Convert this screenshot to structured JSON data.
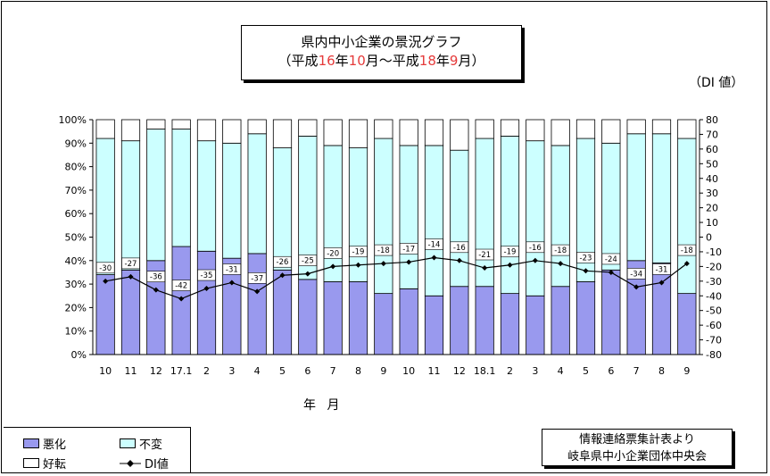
{
  "title": {
    "line1": "県内中小企業の景況グラフ",
    "line2_parts": [
      "（平成",
      "16",
      "年",
      "10",
      "月～平成",
      "18",
      "年",
      "9",
      "月）"
    ]
  },
  "unit_label": "（DI 値）",
  "xaxis_title": "年  月",
  "source": {
    "line1": "情報連絡票集計表より",
    "line2": "岐阜県中小企業団体中央会"
  },
  "legend": {
    "bad": "悪化",
    "same": "不変",
    "good": "好転",
    "di": "DI値"
  },
  "colors": {
    "bad": "#9999ee",
    "same": "#ccffff",
    "good": "#ffffff",
    "di": "#000000"
  },
  "chart_data": {
    "type": "bar",
    "stacked": true,
    "categories": [
      "10",
      "11",
      "12",
      "17.1",
      "2",
      "3",
      "4",
      "5",
      "6",
      "7",
      "8",
      "9",
      "10",
      "11",
      "12",
      "18.1",
      "2",
      "3",
      "4",
      "5",
      "6",
      "7",
      "8",
      "9"
    ],
    "left_axis": {
      "ticks": [
        "0%",
        "10%",
        "20%",
        "30%",
        "40%",
        "50%",
        "60%",
        "70%",
        "80%",
        "90%",
        "100%"
      ],
      "range": [
        0,
        100
      ]
    },
    "right_axis": {
      "ticks": [
        "-80",
        "-70",
        "-60",
        "-50",
        "-40",
        "-30",
        "-20",
        "-10",
        "0",
        "10",
        "20",
        "30",
        "40",
        "50",
        "60",
        "70",
        "80"
      ],
      "range": [
        -80,
        80
      ]
    },
    "series": [
      {
        "name": "悪化",
        "axis": "left",
        "values": [
          34,
          36,
          40,
          46,
          44,
          41,
          43,
          36,
          32,
          31,
          31,
          26,
          28,
          25,
          29,
          29,
          26,
          25,
          29,
          31,
          36,
          40,
          39,
          26
        ]
      },
      {
        "name": "不変",
        "axis": "left",
        "values": [
          58,
          55,
          56,
          50,
          47,
          49,
          51,
          52,
          61,
          58,
          57,
          66,
          61,
          64,
          58,
          63,
          67,
          66,
          60,
          61,
          54,
          54,
          55,
          66
        ]
      },
      {
        "name": "好転",
        "axis": "left",
        "values": [
          8,
          9,
          4,
          4,
          9,
          10,
          6,
          12,
          7,
          11,
          12,
          8,
          11,
          11,
          13,
          8,
          7,
          9,
          11,
          8,
          10,
          6,
          6,
          8
        ]
      },
      {
        "name": "DI値",
        "axis": "right",
        "type": "line",
        "values": [
          -30,
          -27,
          -36,
          -42,
          -35,
          -31,
          -37,
          -26,
          -25,
          -20,
          -19,
          -18,
          -17,
          -14,
          -16,
          -21,
          -19,
          -16,
          -18,
          -23,
          -24,
          -34,
          -31,
          -18
        ]
      }
    ],
    "grid": false
  }
}
